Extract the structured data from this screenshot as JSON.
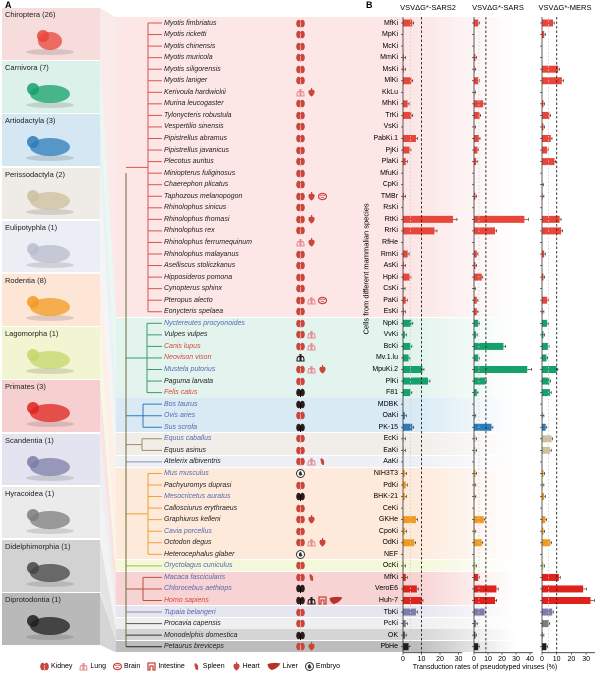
{
  "panel_a_label": "A",
  "panel_b_label": "B",
  "colors": {
    "bar_default": "#e8463a"
  },
  "orders": [
    {
      "name": "Chiroptera (26)",
      "count": 26,
      "bg": "#f7dcdc",
      "bar": "#e8463a",
      "band": "#fce6e6",
      "tree": "#d9534f",
      "animal": "bat"
    },
    {
      "name": "Carnivora (7)",
      "count": 7,
      "bg": "#dcf1ea",
      "bar": "#16a06a",
      "band": "#e2f4ed",
      "tree": "#3f9a6b",
      "animal": "dog"
    },
    {
      "name": "Artiodactyla (3)",
      "count": 3,
      "bg": "#d5e7f3",
      "bar": "#2b7bb9",
      "band": "#d9eaf5",
      "tree": "#2b7bb9",
      "animal": "cattle"
    },
    {
      "name": "Perissodactyla (2)",
      "count": 2,
      "bg": "#efece7",
      "bar": "#cdbf9f",
      "band": "#f1eee9",
      "tree": "#9a8f60",
      "animal": "donkey"
    },
    {
      "name": "Eulipotyphla (1)",
      "count": 1,
      "bg": "#eceef5",
      "bar": "#b8bccc",
      "band": "#eff0f6",
      "tree": "#8895b0",
      "animal": "hedgehog"
    },
    {
      "name": "Rodentia (8)",
      "count": 8,
      "bg": "#fde6d5",
      "bar": "#f29a1f",
      "band": "#feeadb",
      "tree": "#f0a030",
      "animal": "naked mole rat"
    },
    {
      "name": "Lagomorpha (1)",
      "count": 1,
      "bg": "#f1f5d2",
      "bar": "#c4d66a",
      "band": "#f4f7da",
      "tree": "#a6b84a",
      "animal": "rabbit"
    },
    {
      "name": "Primates (3)",
      "count": 3,
      "bg": "#f6d0d0",
      "bar": "#df231c",
      "band": "#f8d3d3",
      "tree": "#b5533d",
      "animal": "monkey"
    },
    {
      "name": "Scandentia (1)",
      "count": 1,
      "bg": "#e3e4ef",
      "bar": "#7c7da8",
      "band": "#e5e6f0",
      "tree": "#8a8ab0",
      "animal": "treeshrew"
    },
    {
      "name": "Hyracoidea (1)",
      "count": 1,
      "bg": "#ebebeb",
      "bar": "#7d7d7d",
      "band": "#efefef",
      "tree": "#555",
      "animal": "hyrax"
    },
    {
      "name": "Didelphimorphia (1)",
      "count": 1,
      "bg": "#d2d2d2",
      "bar": "#444",
      "band": "#d5d5d5",
      "tree": "#333",
      "animal": "opossum"
    },
    {
      "name": "Diprotodontia (1)",
      "count": 1,
      "bg": "#b9b9b9",
      "bar": "#1e1e1e",
      "band": "#bdbdbd",
      "tree": "#222",
      "animal": "sugar glider"
    }
  ],
  "species_color_codes": {
    "black": "#222",
    "blue": "#5668b0",
    "red": "#d9473c"
  },
  "rows": [
    {
      "sp": "Myotis fimbriatus",
      "c": "black",
      "cell": "MfKi",
      "org": [
        "kidney"
      ],
      "v": [
        5,
        3,
        7.5
      ]
    },
    {
      "sp": "Myotis ricketti",
      "c": "black",
      "cell": "MpKi",
      "org": [
        "kidney"
      ],
      "v": [
        0,
        0,
        1.5
      ]
    },
    {
      "sp": "Myotis chinensis",
      "c": "black",
      "cell": "McKi",
      "org": [
        "kidney"
      ],
      "v": [
        0,
        0,
        0
      ]
    },
    {
      "sp": "Myotis muricola",
      "c": "black",
      "cell": "MmKi",
      "org": [
        "kidney"
      ],
      "v": [
        0.5,
        1,
        0
      ]
    },
    {
      "sp": "Myotis siligorensis",
      "c": "black",
      "cell": "MsKi",
      "org": [
        "kidney"
      ],
      "v": [
        0.5,
        0.5,
        11
      ]
    },
    {
      "sp": "Myotis laniger",
      "c": "black",
      "cell": "MlKi",
      "org": [
        "kidney"
      ],
      "v": [
        4.5,
        3,
        13.5
      ]
    },
    {
      "sp": "Kerivoula hardwickii",
      "c": "black",
      "cell": "KkLu",
      "org": [
        "lung",
        "heart"
      ],
      "v": [
        0,
        0.3,
        0
      ]
    },
    {
      "sp": "Murina leucogaster",
      "c": "black",
      "cell": "MhKi",
      "org": [
        "kidney"
      ],
      "v": [
        2.5,
        6.5,
        1
      ]
    },
    {
      "sp": "Tylonycteris robustula",
      "c": "black",
      "cell": "TrKi",
      "org": [
        "kidney"
      ],
      "v": [
        4.5,
        4,
        5
      ]
    },
    {
      "sp": "Vespertilio sinensis",
      "c": "black",
      "cell": "VsKi",
      "org": [
        "kidney"
      ],
      "v": [
        0,
        0.3,
        1
      ]
    },
    {
      "sp": "Pipistrellus abramus",
      "c": "black",
      "cell": "PabKi.1",
      "org": [
        "kidney"
      ],
      "v": [
        7,
        3.5,
        6
      ]
    },
    {
      "sp": "Pipistrellus javanicus",
      "c": "black",
      "cell": "PjKi",
      "org": [
        "kidney"
      ],
      "v": [
        3.5,
        2.5,
        3.5
      ]
    },
    {
      "sp": "Plecotus auritus",
      "c": "black",
      "cell": "PlaKi",
      "org": [
        "kidney"
      ],
      "v": [
        1.5,
        1.5,
        8.5
      ]
    },
    {
      "sp": "Miniopterus fuliginosus",
      "c": "black",
      "cell": "MfuKi",
      "org": [
        "kidney"
      ],
      "v": [
        0,
        0,
        0
      ]
    },
    {
      "sp": "Chaerephon plicatus",
      "c": "black",
      "cell": "CpKi",
      "org": [
        "kidney"
      ],
      "v": [
        0,
        0,
        0.3
      ]
    },
    {
      "sp": "Taphozous melanopogon",
      "c": "black",
      "cell": "TMBr",
      "org": [
        "kidney",
        "heart",
        "brain"
      ],
      "v": [
        0.5,
        1,
        0.5
      ]
    },
    {
      "sp": "Rhinolophus sinicus",
      "c": "black",
      "cell": "RsKi",
      "org": [
        "kidney"
      ],
      "v": [
        0,
        0,
        0
      ]
    },
    {
      "sp": "Rhinolophus thomasi",
      "c": "black",
      "cell": "RtKi",
      "org": [
        "kidney",
        "heart"
      ],
      "v": [
        27,
        36,
        12
      ]
    },
    {
      "sp": "Rhinolophus rex",
      "c": "black",
      "cell": "RrKi",
      "org": [
        "kidney"
      ],
      "v": [
        17,
        15,
        13
      ]
    },
    {
      "sp": "Rhinolophus ferrumequinum",
      "c": "black",
      "cell": "RfHe",
      "org": [
        "lung",
        "heart"
      ],
      "v": [
        0,
        0,
        0
      ]
    },
    {
      "sp": "Rhinolophus malayanus",
      "c": "black",
      "cell": "RmKi",
      "org": [
        "kidney"
      ],
      "v": [
        2.5,
        2,
        1.5
      ]
    },
    {
      "sp": "Aselliscus stoliczkanus",
      "c": "black",
      "cell": "AsKi",
      "org": [
        "kidney"
      ],
      "v": [
        0.5,
        1,
        0
      ]
    },
    {
      "sp": "Hipposideros pomona",
      "c": "black",
      "cell": "HpKi",
      "org": [
        "kidney"
      ],
      "v": [
        3.5,
        5.5,
        1
      ]
    },
    {
      "sp": "Cynopterus sphinx",
      "c": "black",
      "cell": "CsKi",
      "org": [
        "kidney"
      ],
      "v": [
        0.3,
        0.3,
        0
      ]
    },
    {
      "sp": "Pteropus alecto",
      "c": "black",
      "cell": "PaKi",
      "org": [
        "kidney",
        "lung",
        "brain"
      ],
      "v": [
        1.5,
        2,
        3.5
      ]
    },
    {
      "sp": "Eonycteris spelaea",
      "c": "black",
      "cell": "EsKi",
      "org": [
        "kidney"
      ],
      "v": [
        0.5,
        2,
        0.5
      ]
    },
    {
      "sp": "Nyctereutes procyonoides",
      "c": "blue",
      "cell": "NpKi",
      "org": [
        "kidney"
      ],
      "v": [
        4.5,
        3,
        3.5
      ]
    },
    {
      "sp": "Vulpes vulpes",
      "c": "black",
      "cell": "VvKi",
      "org": [
        "kidney",
        "lung"
      ],
      "v": [
        1,
        1.5,
        1
      ]
    },
    {
      "sp": "Canis lupus",
      "c": "red",
      "cell": "BcKi",
      "org": [
        "kidney",
        "lung"
      ],
      "v": [
        4,
        21,
        4
      ]
    },
    {
      "sp": "Neovison vison",
      "c": "red",
      "cell": "Mv.1.lu",
      "org": [
        "lung*"
      ],
      "v": [
        3,
        3,
        3
      ]
    },
    {
      "sp": "Mustela putorius",
      "c": "blue",
      "cell": "MpuKi.2",
      "org": [
        "kidney",
        "lung",
        "heart"
      ],
      "v": [
        10.5,
        38,
        10
      ]
    },
    {
      "sp": "Paguma larvata",
      "c": "black",
      "cell": "PlKi",
      "org": [
        "kidney"
      ],
      "v": [
        13.5,
        8,
        5
      ]
    },
    {
      "sp": "Felis catus",
      "c": "red",
      "cell": "F81",
      "org": [
        "kidney*"
      ],
      "v": [
        4,
        2,
        5.5
      ]
    },
    {
      "sp": "Bos taurus",
      "c": "blue",
      "cell": "MDBK",
      "org": [
        "kidney*"
      ],
      "v": [
        0,
        0,
        0
      ]
    },
    {
      "sp": "Ovis aries",
      "c": "blue",
      "cell": "OaKi",
      "org": [
        "kidney"
      ],
      "v": [
        1,
        0.5,
        0.5
      ]
    },
    {
      "sp": "Sus scrofa",
      "c": "blue",
      "cell": "PK-15",
      "org": [
        "kidney*"
      ],
      "v": [
        5,
        12.5,
        2.5
      ]
    },
    {
      "sp": "Equus caballus",
      "c": "blue",
      "cell": "EcKi",
      "org": [
        "kidney"
      ],
      "v": [
        0.5,
        1,
        6.5
      ]
    },
    {
      "sp": "Equus asinus",
      "c": "black",
      "cell": "EaKi",
      "org": [
        "kidney"
      ],
      "v": [
        0.5,
        1,
        5.5
      ]
    },
    {
      "sp": "Atelerix albiventris",
      "c": "black",
      "cell": "AaKi",
      "org": [
        "kidney",
        "lung",
        "spleen"
      ],
      "v": [
        0,
        0,
        0
      ]
    },
    {
      "sp": "Mus musculus",
      "c": "blue",
      "cell": "NIH3T3",
      "org": [
        "embryo"
      ],
      "v": [
        1,
        1,
        1
      ]
    },
    {
      "sp": "Pachyuromys duprasi",
      "c": "black",
      "cell": "PdKi",
      "org": [
        "kidney"
      ],
      "v": [
        1.5,
        0.5,
        0.5
      ]
    },
    {
      "sp": "Mesocricetus auratus",
      "c": "blue",
      "cell": "BHK-21",
      "org": [
        "kidney*"
      ],
      "v": [
        1,
        0.5,
        1.5
      ]
    },
    {
      "sp": "Callosciurus erythraeus",
      "c": "black",
      "cell": "CeKi",
      "org": [
        "kidney"
      ],
      "v": [
        0,
        0,
        0
      ]
    },
    {
      "sp": "Graphiurus kelleni",
      "c": "black",
      "cell": "GKHe",
      "org": [
        "kidney",
        "heart"
      ],
      "v": [
        7,
        7,
        2.3
      ]
    },
    {
      "sp": "Cavia porcellus",
      "c": "blue",
      "cell": "CpoKi",
      "org": [
        "kidney"
      ],
      "v": [
        1,
        0.5,
        1
      ]
    },
    {
      "sp": "Octodon degus",
      "c": "black",
      "cell": "OdKi",
      "org": [
        "kidney",
        "lung",
        "heart"
      ],
      "v": [
        6,
        5.5,
        5.7
      ]
    },
    {
      "sp": "Heterocephalus glaber",
      "c": "black",
      "cell": "NEF",
      "org": [
        "embryo"
      ],
      "v": [
        0,
        0,
        0
      ]
    },
    {
      "sp": "Oryctolagus cuniculus",
      "c": "blue",
      "cell": "OcKi",
      "org": [
        "kidney"
      ],
      "v": [
        0.5,
        1,
        1
      ]
    },
    {
      "sp": "Macaca fascicularis",
      "c": "blue",
      "cell": "MfKi",
      "org": [
        "kidney",
        "spleen"
      ],
      "v": [
        1.5,
        3,
        11.5
      ]
    },
    {
      "sp": "Chlorocebus aethiops",
      "c": "blue",
      "cell": "VeroE6",
      "org": [
        "kidney*"
      ],
      "v": [
        7.5,
        16,
        28
      ]
    },
    {
      "sp": "Homo sapiens",
      "c": "red",
      "cell": "Huh-7",
      "org": [
        "kidney*",
        "lung*",
        "intestine",
        "liver"
      ],
      "v": [
        10,
        15,
        33
      ]
    },
    {
      "sp": "Tupaia belangeri",
      "c": "blue",
      "cell": "TbKi",
      "org": [
        "kidney"
      ],
      "v": [
        7,
        7.5,
        7
      ]
    },
    {
      "sp": "Procavia capensis",
      "c": "black",
      "cell": "PcKi",
      "org": [
        "kidney"
      ],
      "v": [
        1.5,
        1.5,
        4.5
      ]
    },
    {
      "sp": "Monodelphis domestica",
      "c": "black",
      "cell": "OK",
      "org": [
        "kidney*"
      ],
      "v": [
        1,
        1,
        0.5
      ]
    },
    {
      "sp": "Petaurus breviceps",
      "c": "black",
      "cell": "PbHe",
      "org": [
        "kidney",
        "heart"
      ],
      "v": [
        3,
        3,
        3
      ]
    }
  ],
  "chart_data": {
    "type": "bar",
    "orientation": "horizontal",
    "ylabel": "Cells from different mammalian species",
    "xlabel": "Transduction rates of pseudotyped viruses (%)",
    "panels": [
      {
        "title": "VSVΔG*-SARS2",
        "xlim": [
          0,
          32
        ],
        "ticks": [
          "0",
          "10",
          "20",
          "30"
        ],
        "ref_lines": [
          4,
          10
        ]
      },
      {
        "title": "VSVΔG*-SARS",
        "xlim": [
          0,
          42
        ],
        "ticks": [
          "0",
          "10",
          "20",
          "30",
          "40"
        ],
        "ref_lines": [
          3.5,
          8.5
        ]
      },
      {
        "title": "VSVΔG*-MERS",
        "xlim": [
          0,
          36
        ],
        "ticks": [
          "0",
          "10",
          "20",
          "30"
        ],
        "ref_lines": [
          4.4,
          10
        ]
      }
    ],
    "note": "values per row are in rows[].v as [SARS2, SARS, MERS] percentages"
  },
  "legend": [
    {
      "icon": "kidney",
      "label": "Kidney"
    },
    {
      "icon": "lung",
      "label": "Lung"
    },
    {
      "icon": "brain",
      "label": "Brain"
    },
    {
      "icon": "intestine",
      "label": "Intestine"
    },
    {
      "icon": "spleen",
      "label": "Spleen"
    },
    {
      "icon": "heart",
      "label": "Heart"
    },
    {
      "icon": "liver",
      "label": "Liver"
    },
    {
      "icon": "embryo",
      "label": "Embryo"
    }
  ]
}
